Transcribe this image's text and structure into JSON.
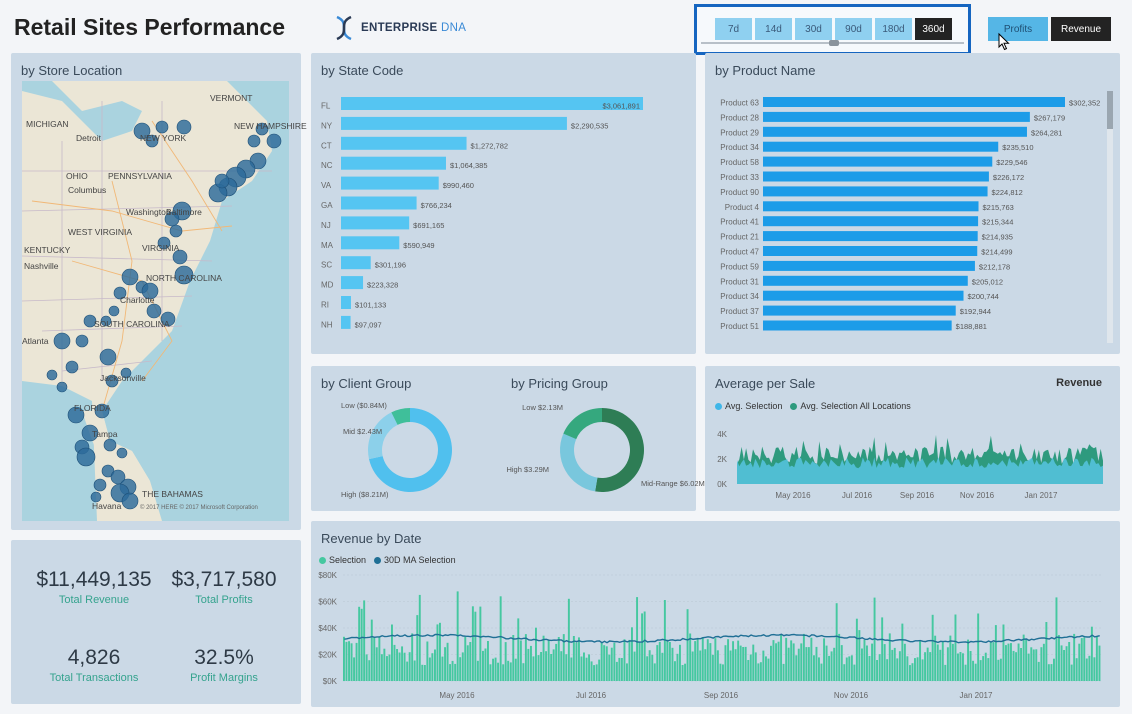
{
  "header": {
    "title": "Retail Sites Performance",
    "logo_main": "ENTERPRISE",
    "logo_accent": "DNA"
  },
  "period_filter": {
    "options": [
      "7d",
      "14d",
      "30d",
      "90d",
      "180d",
      "360d"
    ],
    "selected": "360d"
  },
  "metric_toggle": {
    "profits": "Profits",
    "revenue": "Revenue",
    "selected": "Revenue"
  },
  "map": {
    "title": "by Store Location",
    "labels": [
      "VERMONT",
      "NEW HAMPSHIRE",
      "MICHIGAN",
      "Detroit",
      "NEW YORK",
      "OHIO",
      "PENNSYLVANIA",
      "Columbus",
      "Washington",
      "Baltimore",
      "WEST VIRGINIA",
      "VIRGINIA",
      "KENTUCKY",
      "Nashville",
      "NORTH CAROLINA",
      "Charlotte",
      "SOUTH CAROLINA",
      "Atlanta",
      "Jacksonville",
      "FLORIDA",
      "Tampa",
      "Havana",
      "THE BAHAMAS"
    ],
    "copyright": "© 2017 HERE © 2017 Microsoft Corporation"
  },
  "kpis": [
    {
      "value": "$11,449,135",
      "label": "Total Revenue"
    },
    {
      "value": "$3,717,580",
      "label": "Total Profits"
    },
    {
      "value": "4,826",
      "label": "Total Transactions"
    },
    {
      "value": "32.5%",
      "label": "Profit Margins"
    }
  ],
  "chart_data": [
    {
      "id": "state",
      "type": "bar",
      "orientation": "horizontal",
      "title": "by State Code",
      "categories": [
        "FL",
        "NY",
        "CT",
        "NC",
        "VA",
        "GA",
        "NJ",
        "MA",
        "SC",
        "MD",
        "RI",
        "NH"
      ],
      "values": [
        3061891,
        2290535,
        1272782,
        1064385,
        990460,
        766234,
        691165,
        590949,
        301196,
        223328,
        101133,
        97097
      ],
      "labels": [
        "$3,061,891",
        "$2,290,535",
        "$1,272,782",
        "$1,064,385",
        "$990,460",
        "$766,234",
        "$691,165",
        "$590,949",
        "$301,196",
        "$223,328",
        "$101,133",
        "$97,097"
      ]
    },
    {
      "id": "product",
      "type": "bar",
      "orientation": "horizontal",
      "title": "by Product Name",
      "categories": [
        "Product 63",
        "Product 28",
        "Product 29",
        "Product 34",
        "Product 58",
        "Product 33",
        "Product 90",
        "Product 4",
        "Product 41",
        "Product 21",
        "Product 47",
        "Product 59",
        "Product 31",
        "Product 34",
        "Product 37",
        "Product 51"
      ],
      "values": [
        302352,
        267179,
        264281,
        235510,
        229546,
        226172,
        224812,
        215763,
        215344,
        214935,
        214499,
        212178,
        205012,
        200744,
        192944,
        188881
      ],
      "labels": [
        "$302,352",
        "$267,179",
        "$264,281",
        "$235,510",
        "$229,546",
        "$226,172",
        "$224,812",
        "$215,763",
        "$215,344",
        "$214,935",
        "$214,499",
        "$212,178",
        "$205,012",
        "$200,744",
        "$192,944",
        "$188,881"
      ]
    },
    {
      "id": "client",
      "type": "pie",
      "title": "by Client Group",
      "slices": [
        {
          "name": "High",
          "value": 8.21,
          "label": "High ($8.21M)",
          "color": "#50c0ee"
        },
        {
          "name": "Mid",
          "value": 2.43,
          "label": "Mid $2.43M",
          "color": "#8cd0ea"
        },
        {
          "name": "Low",
          "value": 0.84,
          "label": "Low ($0.84M)",
          "color": "#3fbf9a"
        }
      ]
    },
    {
      "id": "pricing",
      "type": "pie",
      "title": "by Pricing Group",
      "slices": [
        {
          "name": "Mid-Range",
          "value": 6.02,
          "label": "Mid-Range $6.02M",
          "color": "#2e7d55"
        },
        {
          "name": "High",
          "value": 3.29,
          "label": "High $3.29M",
          "color": "#79c7dd"
        },
        {
          "name": "Low",
          "value": 2.13,
          "label": "Low $2.13M",
          "color": "#35a87e"
        }
      ]
    },
    {
      "id": "avg",
      "type": "area",
      "title": "Average per Sale",
      "metric": "Revenue",
      "series": [
        {
          "name": "Avg. Selection",
          "color": "#3fb6e8"
        },
        {
          "name": "Avg. Selection All Locations",
          "color": "#2e9a7e"
        }
      ],
      "ylim": [
        0,
        4000
      ],
      "yticks": [
        "4K",
        "2K",
        "0K"
      ],
      "xticks": [
        "May 2016",
        "Jul 2016",
        "Sep 2016",
        "Nov 2016",
        "Jan 2017"
      ]
    },
    {
      "id": "revdate",
      "type": "bar",
      "title": "Revenue by Date",
      "series": [
        {
          "name": "Selection",
          "color": "#45c8a0"
        },
        {
          "name": "30D MA Selection",
          "color": "#1f6f95"
        }
      ],
      "ylim": [
        0,
        80000
      ],
      "yticks": [
        "$80K",
        "$60K",
        "$40K",
        "$20K",
        "$0K"
      ],
      "xticks": [
        "May 2016",
        "Jul 2016",
        "Sep 2016",
        "Nov 2016",
        "Jan 2017"
      ]
    }
  ]
}
